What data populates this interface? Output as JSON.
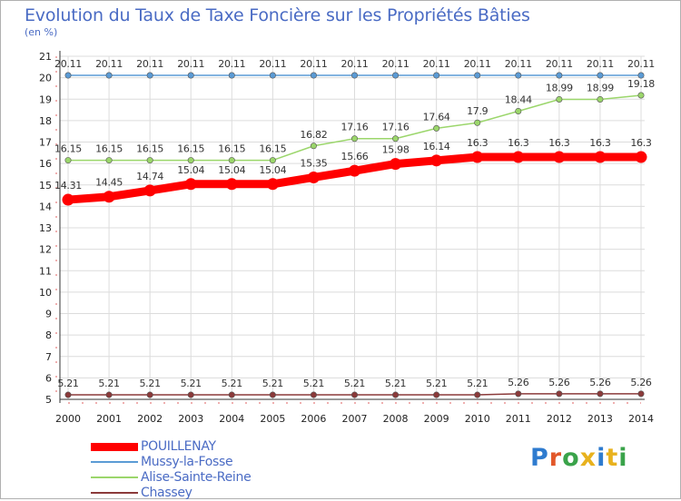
{
  "title": "Evolution du Taux de Taxe Foncière sur les Propriétés Bâties",
  "unit": "(en %)",
  "brand": {
    "text": "Proxiti",
    "colors": [
      "#2e7bcf",
      "#e2582a",
      "#3aa34a",
      "#e8b21e",
      "#2e7bcf",
      "#e8b21e",
      "#3aa34a"
    ]
  },
  "chart_data": {
    "type": "line",
    "title": "Evolution du Taux de Taxe Foncière sur les Propriétés Bâties",
    "xlabel": "",
    "ylabel": "(en %)",
    "ylim": [
      5,
      21
    ],
    "grid": true,
    "categories": [
      "2000",
      "2001",
      "2002",
      "2003",
      "2004",
      "2005",
      "2006",
      "2007",
      "2008",
      "2009",
      "2010",
      "2011",
      "2012",
      "2013",
      "2014"
    ],
    "y_ticks": [
      5,
      6,
      7,
      8,
      9,
      10,
      11,
      12,
      13,
      14,
      15,
      16,
      17,
      18,
      19,
      20,
      21
    ],
    "series": [
      {
        "name": "POUILLENAY",
        "color": "#ff0000",
        "values": [
          14.31,
          14.45,
          14.74,
          15.04,
          15.04,
          15.04,
          15.35,
          15.66,
          15.98,
          16.14,
          16.3,
          16.3,
          16.3,
          16.3,
          16.3
        ],
        "labels": [
          "14.31",
          "14.45",
          "14.74",
          "15.04",
          "15.04",
          "15.04",
          "15.35",
          "15.66",
          "15.98",
          "16.14",
          "16.3",
          "16.3",
          "16.3",
          "16.3",
          "16.3"
        ]
      },
      {
        "name": "Mussy-la-Fosse",
        "color": "#5b9bd5",
        "values": [
          20.11,
          20.11,
          20.11,
          20.11,
          20.11,
          20.11,
          20.11,
          20.11,
          20.11,
          20.11,
          20.11,
          20.11,
          20.11,
          20.11,
          20.11
        ],
        "labels": [
          "20.11",
          "20.11",
          "20.11",
          "20.11",
          "20.11",
          "20.11",
          "20.11",
          "20.11",
          "20.11",
          "20.11",
          "20.11",
          "20.11",
          "20.11",
          "20.11",
          "20.11"
        ]
      },
      {
        "name": "Alise-Sainte-Reine",
        "color": "#9bd66b",
        "values": [
          16.15,
          16.15,
          16.15,
          16.15,
          16.15,
          16.15,
          16.82,
          17.16,
          17.16,
          17.64,
          17.9,
          18.44,
          18.99,
          18.99,
          19.18
        ],
        "labels": [
          "16.15",
          "16.15",
          "16.15",
          "16.15",
          "16.15",
          "16.15",
          "16.82",
          "17.16",
          "17.16",
          "17.64",
          "17.9",
          "18.44",
          "18.99",
          "18.99",
          "19.18"
        ]
      },
      {
        "name": "Chassey",
        "color": "#8b3a3a",
        "values": [
          5.21,
          5.21,
          5.21,
          5.21,
          5.21,
          5.21,
          5.21,
          5.21,
          5.21,
          5.21,
          5.21,
          5.26,
          5.26,
          5.26,
          5.26
        ],
        "labels": [
          "5.21",
          "5.21",
          "5.21",
          "5.21",
          "5.21",
          "5.21",
          "5.21",
          "5.21",
          "5.21",
          "5.21",
          "5.21",
          "5.26",
          "5.26",
          "5.26",
          "5.26"
        ]
      }
    ]
  }
}
